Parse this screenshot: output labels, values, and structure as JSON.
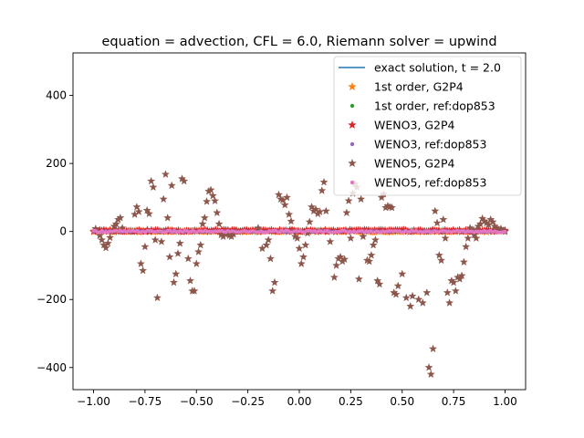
{
  "chart_data": {
    "type": "scatter",
    "title": "equation = advection, CFL = 6.0, Riemann solver = upwind",
    "xlabel": "",
    "ylabel": "",
    "xlim": [
      -1.1,
      1.1
    ],
    "ylim": [
      -465,
      525
    ],
    "xticks": [
      "−1.00",
      "−0.75",
      "−0.50",
      "−0.25",
      "0.00",
      "0.25",
      "0.50",
      "0.75",
      "1.00"
    ],
    "yticks": [
      "−400",
      "−200",
      "0",
      "200",
      "400"
    ],
    "legend_position": "top-right",
    "grid": false,
    "series": [
      {
        "name": "exact solution, t = 2.0",
        "marker": "line",
        "color": "#1f77b4",
        "x": [
          -1.0,
          1.0
        ],
        "y": [
          0,
          0
        ]
      },
      {
        "name": "1st order, G2P4",
        "marker": "star",
        "color": "#ff7f0e",
        "x_range": [
          -1.0,
          1.0
        ],
        "y_range": [
          -2,
          3
        ]
      },
      {
        "name": "1st order, ref:dop853",
        "marker": "dot",
        "color": "#2ca02c",
        "x_range": [
          -1.0,
          1.0
        ],
        "y_range": [
          -2,
          2
        ]
      },
      {
        "name": "WENO3, G2P4",
        "marker": "star",
        "color": "#d62728",
        "x_range": [
          -1.0,
          1.0
        ],
        "y_range": [
          -1,
          5
        ]
      },
      {
        "name": "WENO3, ref:dop853",
        "marker": "dot",
        "color": "#9467bd",
        "x_range": [
          -1.0,
          1.0
        ],
        "y_range": [
          -2,
          2
        ]
      },
      {
        "name": "WENO5, G2P4",
        "marker": "star",
        "color": "#8c564b",
        "points": [
          [
            -0.99,
            8
          ],
          [
            -0.97,
            -12
          ],
          [
            -0.96,
            -25
          ],
          [
            -0.95,
            -40
          ],
          [
            -0.94,
            -48
          ],
          [
            -0.93,
            -35
          ],
          [
            -0.92,
            -18
          ],
          [
            -0.91,
            0
          ],
          [
            -0.9,
            15
          ],
          [
            -0.89,
            22
          ],
          [
            -0.88,
            35
          ],
          [
            -0.87,
            40
          ],
          [
            -0.86,
            10
          ],
          [
            -0.8,
            50
          ],
          [
            -0.79,
            72
          ],
          [
            -0.78,
            58
          ],
          [
            -0.77,
            -95
          ],
          [
            -0.76,
            -115
          ],
          [
            -0.75,
            -45
          ],
          [
            -0.74,
            62
          ],
          [
            -0.73,
            52
          ],
          [
            -0.72,
            148
          ],
          [
            -0.71,
            130
          ],
          [
            -0.7,
            -25
          ],
          [
            -0.69,
            -195
          ],
          [
            -0.67,
            -30
          ],
          [
            -0.66,
            95
          ],
          [
            -0.65,
            168
          ],
          [
            -0.64,
            40
          ],
          [
            -0.63,
            -75
          ],
          [
            -0.62,
            135
          ],
          [
            -0.61,
            -150
          ],
          [
            -0.6,
            -125
          ],
          [
            -0.59,
            -65
          ],
          [
            -0.58,
            -35
          ],
          [
            -0.57,
            155
          ],
          [
            -0.56,
            148
          ],
          [
            -0.54,
            -80
          ],
          [
            -0.53,
            -145
          ],
          [
            -0.52,
            -175
          ],
          [
            -0.51,
            -175
          ],
          [
            -0.5,
            -95
          ],
          [
            -0.49,
            -60
          ],
          [
            -0.48,
            -40
          ],
          [
            -0.47,
            22
          ],
          [
            -0.46,
            40
          ],
          [
            -0.45,
            88
          ],
          [
            -0.44,
            118
          ],
          [
            -0.43,
            122
          ],
          [
            -0.42,
            105
          ],
          [
            -0.41,
            90
          ],
          [
            -0.4,
            55
          ],
          [
            -0.39,
            22
          ],
          [
            -0.38,
            -10
          ],
          [
            -0.37,
            -15
          ],
          [
            -0.36,
            -8
          ],
          [
            -0.35,
            -5
          ],
          [
            -0.34,
            -12
          ],
          [
            -0.33,
            -15
          ],
          [
            -0.32,
            -8
          ],
          [
            -0.31,
            0
          ],
          [
            -0.2,
            10
          ],
          [
            -0.18,
            -50
          ],
          [
            -0.16,
            -40
          ],
          [
            -0.15,
            -25
          ],
          [
            -0.14,
            -80
          ],
          [
            -0.13,
            -175
          ],
          [
            -0.12,
            -150
          ],
          [
            -0.1,
            108
          ],
          [
            -0.09,
            95
          ],
          [
            -0.08,
            92
          ],
          [
            -0.07,
            78
          ],
          [
            -0.06,
            100
          ],
          [
            -0.05,
            50
          ],
          [
            -0.04,
            30
          ],
          [
            -0.03,
            0
          ],
          [
            -0.02,
            -15
          ],
          [
            -0.01,
            -20
          ],
          [
            0.0,
            -50
          ],
          [
            0.01,
            -95
          ],
          [
            0.02,
            -75
          ],
          [
            0.03,
            -40
          ],
          [
            0.04,
            -5
          ],
          [
            0.05,
            28
          ],
          [
            0.06,
            72
          ],
          [
            0.07,
            60
          ],
          [
            0.08,
            65
          ],
          [
            0.09,
            52
          ],
          [
            0.1,
            58
          ],
          [
            0.11,
            120
          ],
          [
            0.12,
            145
          ],
          [
            0.13,
            60
          ],
          [
            0.15,
            -30
          ],
          [
            0.17,
            -135
          ],
          [
            0.18,
            -100
          ],
          [
            0.19,
            -80
          ],
          [
            0.2,
            -75
          ],
          [
            0.21,
            -88
          ],
          [
            0.22,
            -82
          ],
          [
            0.23,
            55
          ],
          [
            0.24,
            90
          ],
          [
            0.25,
            -20
          ],
          [
            0.26,
            112
          ],
          [
            0.27,
            140
          ],
          [
            0.28,
            130
          ],
          [
            0.29,
            -140
          ],
          [
            0.3,
            95
          ],
          [
            0.31,
            -15
          ],
          [
            0.33,
            -85
          ],
          [
            0.34,
            -88
          ],
          [
            0.35,
            -70
          ],
          [
            0.36,
            -40
          ],
          [
            0.37,
            -25
          ],
          [
            0.38,
            -145
          ],
          [
            0.39,
            -155
          ],
          [
            0.4,
            100
          ],
          [
            0.41,
            110
          ],
          [
            0.42,
            70
          ],
          [
            0.43,
            75
          ],
          [
            0.44,
            72
          ],
          [
            0.45,
            70
          ],
          [
            0.46,
            -180
          ],
          [
            0.47,
            -185
          ],
          [
            0.48,
            -160
          ],
          [
            0.5,
            -125
          ],
          [
            0.52,
            -195
          ],
          [
            0.54,
            -220
          ],
          [
            0.55,
            -190
          ],
          [
            0.58,
            -200
          ],
          [
            0.6,
            -210
          ],
          [
            0.62,
            -180
          ],
          [
            0.63,
            -400
          ],
          [
            0.64,
            -420
          ],
          [
            0.65,
            -345
          ],
          [
            0.66,
            60
          ],
          [
            0.67,
            25
          ],
          [
            0.68,
            -70
          ],
          [
            0.69,
            -85
          ],
          [
            0.7,
            35
          ],
          [
            0.71,
            -20
          ],
          [
            0.72,
            -180
          ],
          [
            0.73,
            -210
          ],
          [
            0.74,
            -145
          ],
          [
            0.75,
            -150
          ],
          [
            0.76,
            -175
          ],
          [
            0.77,
            -135
          ],
          [
            0.78,
            -140
          ],
          [
            0.79,
            -130
          ],
          [
            0.8,
            -90
          ],
          [
            0.81,
            -45
          ],
          [
            0.82,
            -20
          ],
          [
            0.83,
            10
          ],
          [
            0.84,
            5
          ],
          [
            0.85,
            -10
          ],
          [
            0.86,
            -20
          ],
          [
            0.87,
            15
          ],
          [
            0.88,
            22
          ],
          [
            0.89,
            38
          ],
          [
            0.9,
            30
          ],
          [
            0.91,
            25
          ],
          [
            0.92,
            20
          ],
          [
            0.93,
            35
          ],
          [
            0.94,
            28
          ],
          [
            0.95,
            15
          ],
          [
            0.96,
            10
          ],
          [
            0.97,
            5
          ],
          [
            0.98,
            8
          ],
          [
            0.99,
            3
          ],
          [
            1.0,
            0
          ]
        ]
      },
      {
        "name": "WENO5, ref:dop853",
        "marker": "dot",
        "color": "#e377c2",
        "x_range": [
          -1.0,
          1.0
        ],
        "y_range": [
          -3,
          3
        ]
      }
    ]
  }
}
